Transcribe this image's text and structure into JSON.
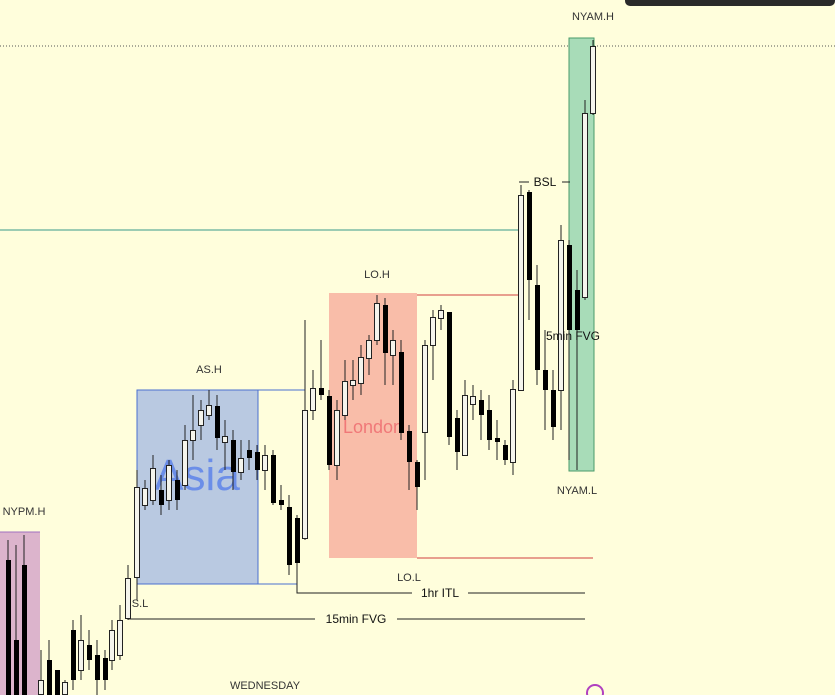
{
  "chart": {
    "session_boxes": {
      "asia": "Asia",
      "london": "London"
    },
    "levels": {
      "nyam_high": "NYAM.H",
      "buy_side_liquidity": "BSL",
      "london_high": "LO.H",
      "fvg_5min": "5min FVG",
      "asia_high": "AS.H",
      "nyam_low": "NYAM.L",
      "nypm_high": "NYPM.H",
      "session_low": "S.L",
      "london_low": "LO.L",
      "itl_1hr": "1hr ITL",
      "fvg_15min": "15min FVG"
    },
    "day_label": "WEDNESDAY"
  }
}
